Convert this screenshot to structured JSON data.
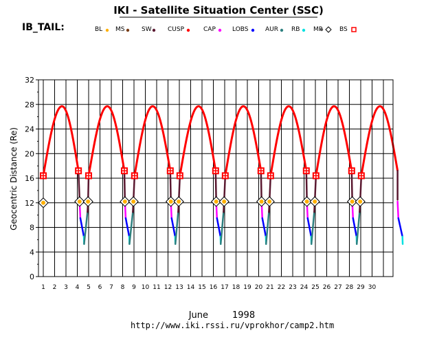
{
  "chart_data": {
    "type": "line",
    "title": "IKI - Satellite Situation Center (SSC)",
    "satellite": "IB_TAIL:",
    "ylabel": "Geocentric  Distance  (Re)",
    "month_label": "June",
    "year_label": "1998",
    "url": "http://www.iki.rssi.ru/vprokhor/camp2.htm",
    "ylim": [
      0,
      32
    ],
    "xlim": [
      1,
      31
    ],
    "y_ticks": [
      0,
      4,
      8,
      12,
      16,
      20,
      24,
      28,
      32
    ],
    "x_ticks": [
      1,
      2,
      3,
      4,
      5,
      6,
      7,
      8,
      9,
      10,
      11,
      12,
      13,
      14,
      15,
      16,
      17,
      18,
      19,
      20,
      21,
      22,
      23,
      24,
      25,
      26,
      27,
      28,
      29,
      30
    ],
    "grid": true,
    "legend": [
      {
        "label": "BL",
        "color": "#ffb000",
        "marker": "dot"
      },
      {
        "label": "MS",
        "color": "#7a3c16",
        "marker": "dot"
      },
      {
        "label": "SW",
        "color": "#5a1830",
        "marker": "dot"
      },
      {
        "label": "CUSP",
        "color": "#ff0000",
        "marker": "dot"
      },
      {
        "label": "CAP",
        "color": "#ff00ff",
        "marker": "dot"
      },
      {
        "label": "LOBS",
        "color": "#0000ff",
        "marker": "dot"
      },
      {
        "label": "AUR",
        "color": "#2e8080",
        "marker": "dot"
      },
      {
        "label": "RB",
        "color": "#00e0e0",
        "marker": "dot"
      },
      {
        "label": "MP",
        "color": "#555555",
        "marker": "dot"
      },
      {
        "label": "BS",
        "color": "#ff0000",
        "marker": "square-plus"
      }
    ],
    "orbits": [
      {
        "bs_out": 1.0,
        "mp_out": 1.05,
        "apogee": 2.65,
        "bs_in": 4.1,
        "mp_in": 4.2,
        "perigee": 4.6,
        "mp_next": 4.95,
        "bs_next": 5.0
      },
      {
        "bs_out": 5.0,
        "mp_out": 5.05,
        "apogee": 6.65,
        "bs_in": 8.15,
        "mp_in": 8.2,
        "perigee": 8.6,
        "mp_next": 8.95,
        "bs_next": 9.05
      },
      {
        "bs_out": 9.05,
        "mp_out": 9.05,
        "apogee": 10.65,
        "bs_in": 12.2,
        "mp_in": 12.25,
        "perigee": 12.65,
        "mp_next": 12.95,
        "bs_next": 13.05
      },
      {
        "bs_out": 13.05,
        "mp_out": 13.05,
        "apogee": 14.7,
        "bs_in": 16.2,
        "mp_in": 16.25,
        "perigee": 16.65,
        "mp_next": 16.95,
        "bs_next": 17.05
      },
      {
        "bs_out": 17.05,
        "mp_out": 17.05,
        "apogee": 18.65,
        "bs_in": 20.2,
        "mp_in": 20.25,
        "perigee": 20.65,
        "mp_next": 20.95,
        "bs_next": 21.05
      },
      {
        "bs_out": 21.05,
        "mp_out": 21.05,
        "apogee": 22.65,
        "bs_in": 24.2,
        "mp_in": 24.25,
        "perigee": 24.65,
        "mp_next": 24.95,
        "bs_next": 25.05
      },
      {
        "bs_out": 25.05,
        "mp_out": 25.05,
        "apogee": 26.65,
        "bs_in": 28.2,
        "mp_in": 28.25,
        "perigee": 28.65,
        "mp_next": 28.95,
        "bs_next": 29.05
      },
      {
        "bs_out": 29.05,
        "mp_out": 29.05,
        "apogee": 30.7,
        "bs_in": 32.25,
        "mp_in": 32.25,
        "perigee": 32.7,
        "mp_next": 33.0,
        "bs_next": 33.1
      }
    ],
    "levels": {
      "apogee_re": 27.7,
      "perigee_re": 5.3,
      "bs_re_out": 16.4,
      "bs_re_in": 17.2,
      "mp_re": 12.2
    }
  }
}
